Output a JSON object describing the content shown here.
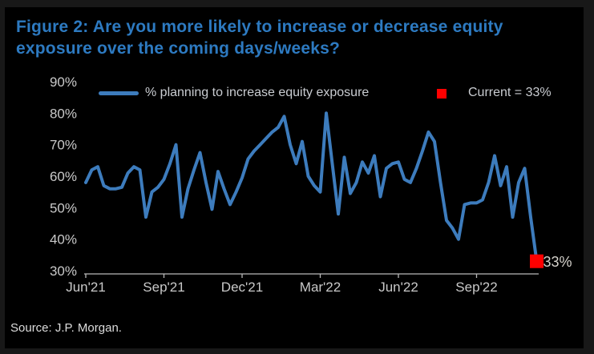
{
  "page": {
    "background": "#181818",
    "panel_background": "#000000"
  },
  "title": {
    "lines": [
      "Figure 2: Are you more likely to increase or decrease equity",
      "exposure over the coming days/weeks?"
    ]
  },
  "legend": {
    "series_label": "% planning to increase equity exposure",
    "current_label": "Current = 33%"
  },
  "source": {
    "text": "Source: J.P. Morgan."
  },
  "colors": {
    "line": "#3d7cbd",
    "marker": "#ff0000",
    "title": "#2d7ac1",
    "axis": "#b9b9b9",
    "text": "#c9c9c9"
  },
  "chart_data": {
    "type": "line",
    "title": "Figure 2: Are you more likely to increase or decrease equity exposure over the coming days/weeks?",
    "xlabel": "",
    "ylabel": "",
    "ylim": [
      30,
      90
    ],
    "grid": false,
    "legend_position": "top",
    "frequency": "weekly",
    "y_ticks": [
      {
        "value": 90,
        "label": "90%"
      },
      {
        "value": 80,
        "label": "80%"
      },
      {
        "value": 70,
        "label": "70%"
      },
      {
        "value": 60,
        "label": "60%"
      },
      {
        "value": 50,
        "label": "50%"
      },
      {
        "value": 40,
        "label": "40%"
      },
      {
        "value": 30,
        "label": "30%"
      }
    ],
    "x_ticks": [
      {
        "week": 0,
        "label": "Jun'21"
      },
      {
        "week": 13,
        "label": "Sep'21"
      },
      {
        "week": 26,
        "label": "Dec'21"
      },
      {
        "week": 39,
        "label": "Mar'22"
      },
      {
        "week": 52,
        "label": "Jun'22"
      },
      {
        "week": 65,
        "label": "Sep'22"
      }
    ],
    "series": [
      {
        "name": "% planning to increase equity exposure",
        "values": [
          58,
          62,
          63,
          57,
          56,
          56,
          56.5,
          61,
          63,
          62,
          47,
          55,
          56.5,
          59,
          64,
          70,
          47,
          56,
          62,
          67.5,
          58,
          49.5,
          61.5,
          56,
          51,
          55,
          59.5,
          65.5,
          68,
          70,
          72,
          74,
          75.5,
          79,
          70,
          64,
          71,
          60,
          57,
          55,
          80,
          64,
          48,
          66,
          54.5,
          58,
          64.5,
          61,
          66.5,
          53.5,
          62.5,
          64,
          64.5,
          59,
          58,
          62.5,
          68,
          74,
          71,
          58,
          46,
          43.5,
          40,
          51,
          51.5,
          51.5,
          52.5,
          58,
          66.5,
          57,
          63,
          47,
          58,
          62.5,
          47,
          33
        ]
      }
    ],
    "current": {
      "value": 33,
      "label": "33%"
    }
  }
}
